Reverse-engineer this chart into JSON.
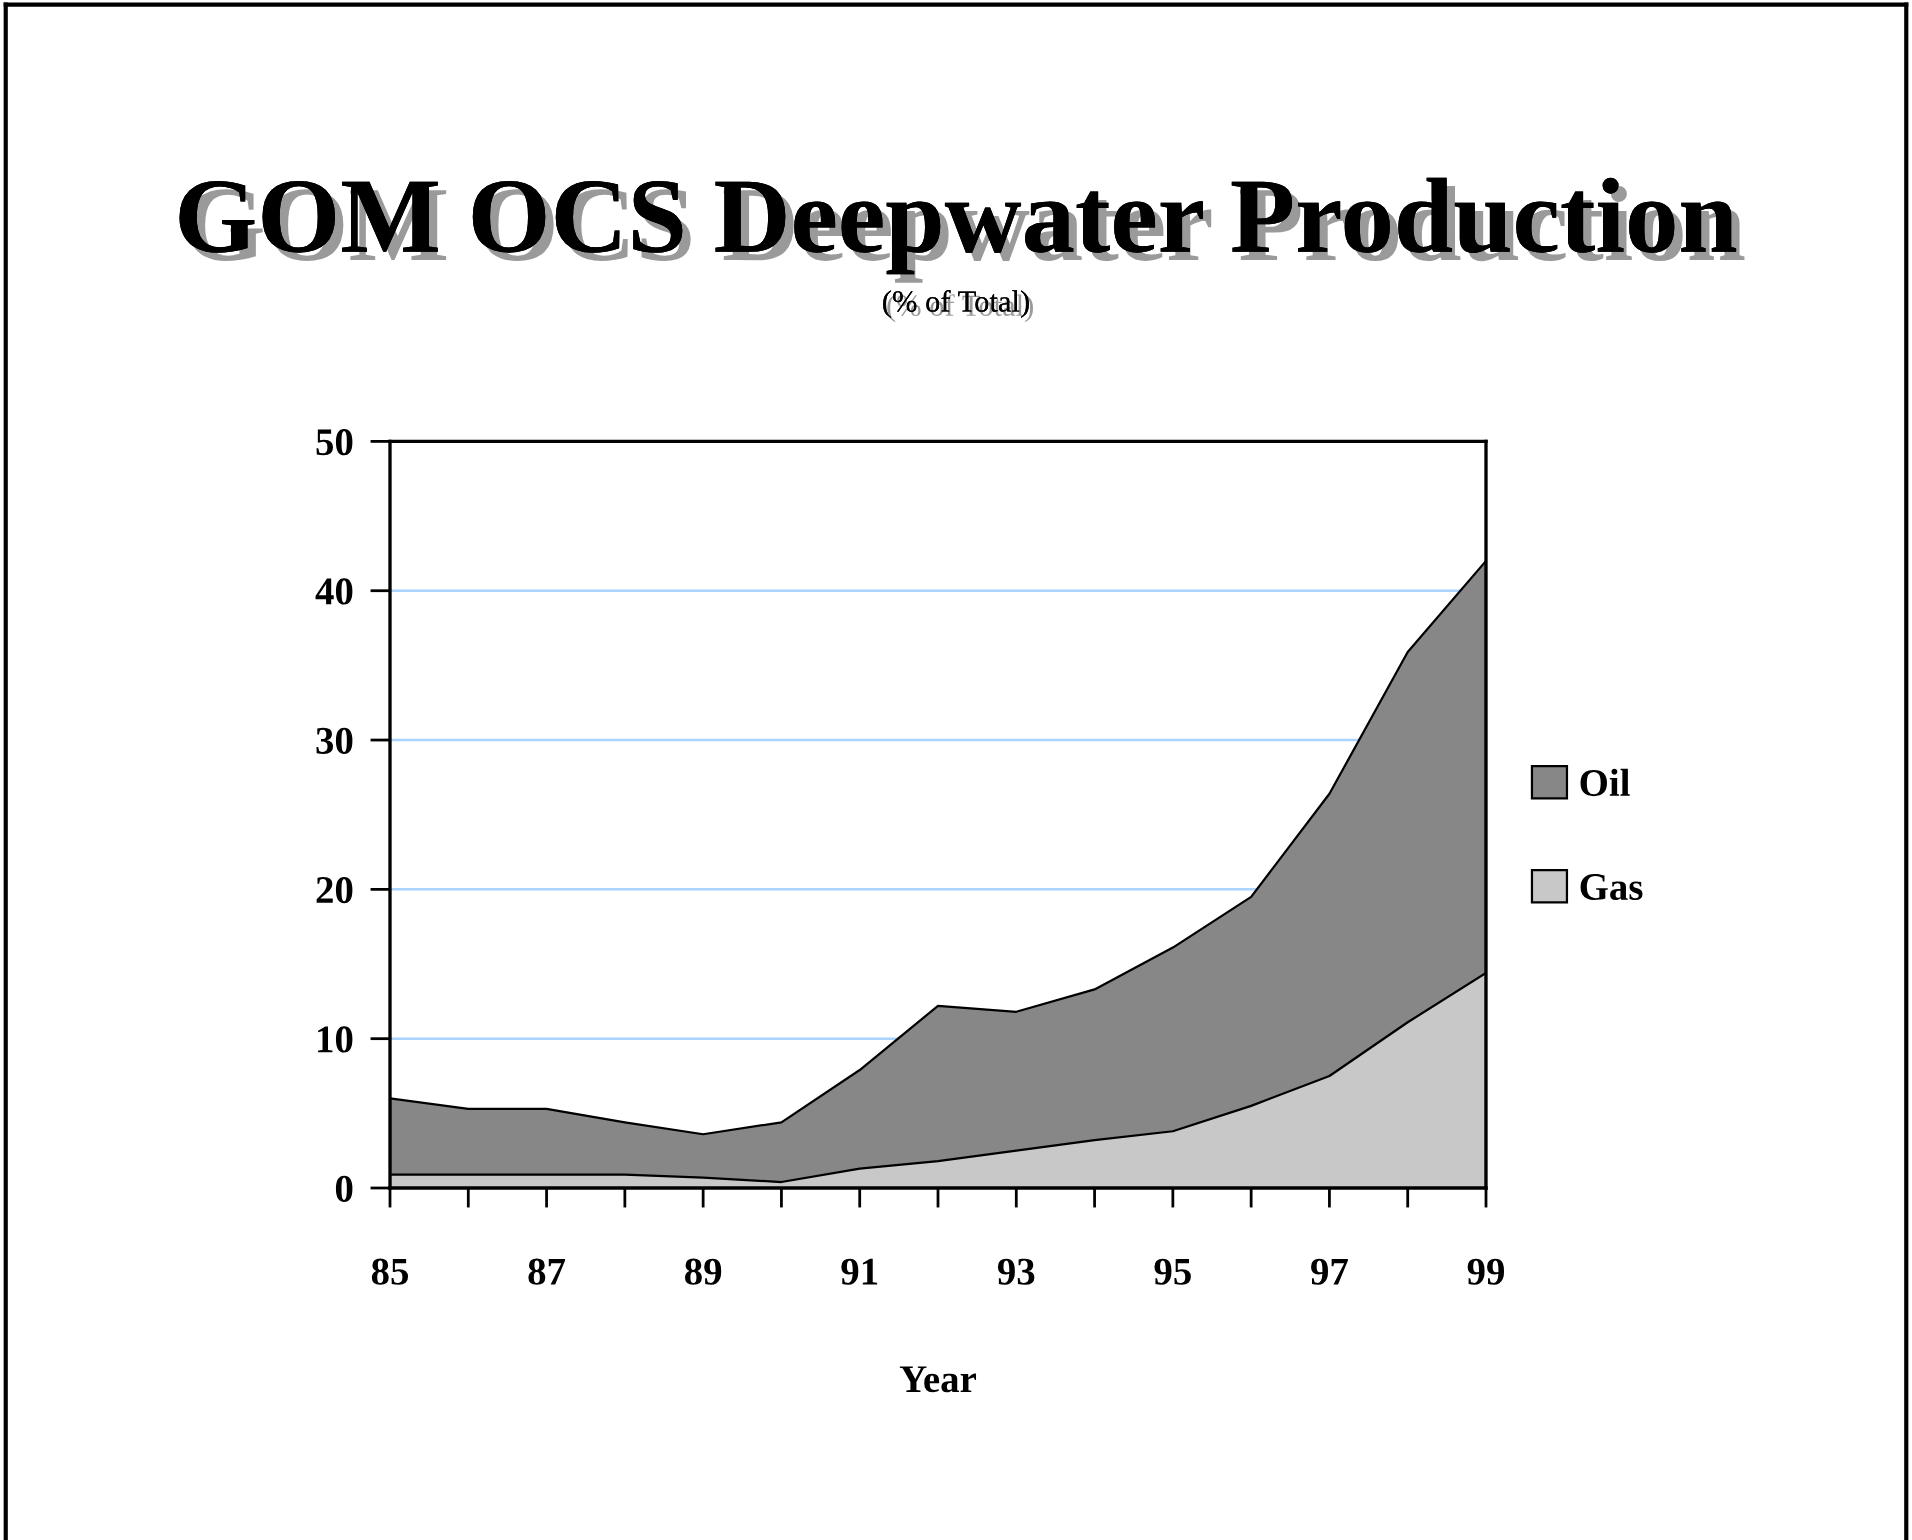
{
  "chart_data": {
    "type": "area",
    "title": "GOM OCS Deepwater Production",
    "subtitle": "(% of Total)",
    "xlabel": "Year",
    "x": [
      85,
      86,
      87,
      88,
      89,
      90,
      91,
      92,
      93,
      94,
      95,
      96,
      97,
      98,
      99
    ],
    "series": [
      {
        "name": "Oil",
        "color": "#878787",
        "values": [
          6.0,
          5.3,
          5.3,
          4.4,
          3.6,
          4.4,
          7.9,
          12.2,
          11.8,
          13.3,
          16.1,
          19.5,
          26.4,
          35.9,
          42.0
        ]
      },
      {
        "name": "Gas",
        "color": "#c8c8c8",
        "values": [
          0.9,
          0.9,
          0.9,
          0.9,
          0.7,
          0.4,
          1.3,
          1.8,
          2.5,
          3.2,
          3.8,
          5.5,
          7.5,
          11.1,
          14.4
        ]
      }
    ],
    "xlim": [
      85,
      99
    ],
    "xticks": [
      85,
      {
        "value": 86,
        "label": null
      },
      87,
      {
        "value": 88,
        "label": null
      },
      89,
      {
        "value": 90,
        "label": null
      },
      91,
      {
        "value": 92,
        "label": null
      },
      93,
      {
        "value": 94,
        "label": null
      },
      95,
      {
        "value": 96,
        "label": null
      },
      97,
      {
        "value": 98,
        "label": null
      },
      99
    ],
    "ylim": [
      0,
      50
    ],
    "yticks": [
      0,
      10,
      20,
      30,
      40,
      50
    ],
    "grid": "y",
    "legend": "right"
  }
}
